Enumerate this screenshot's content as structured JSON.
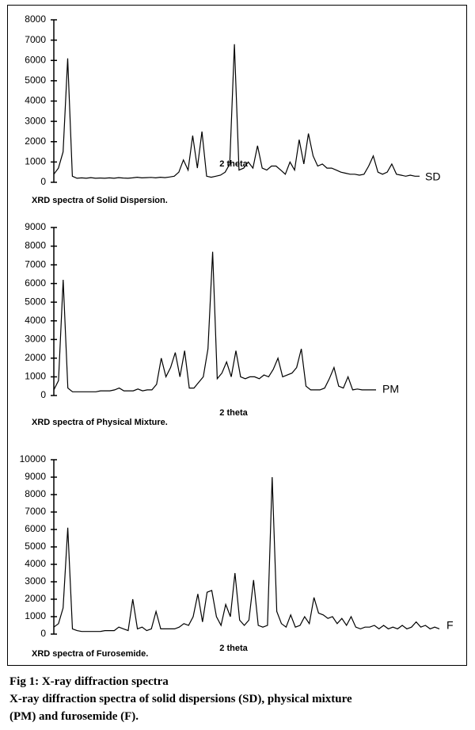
{
  "chart_data": [
    {
      "type": "line",
      "color": "#000000",
      "label": "SD",
      "xlabel": "2 theta",
      "caption": "XRD spectra of Solid Dispersion.",
      "ylim": [
        0,
        8000
      ],
      "yticks": [
        0,
        1000,
        2000,
        3000,
        4000,
        5000,
        6000,
        7000,
        8000
      ],
      "values": [
        400,
        700,
        1500,
        6100,
        300,
        200,
        220,
        200,
        230,
        200,
        210,
        200,
        220,
        200,
        230,
        210,
        200,
        220,
        250,
        220,
        230,
        240,
        220,
        250,
        230,
        260,
        300,
        500,
        1100,
        600,
        2300,
        700,
        2500,
        300,
        250,
        300,
        350,
        500,
        900,
        6800,
        600,
        700,
        1000,
        700,
        1800,
        700,
        600,
        800,
        800,
        600,
        400,
        1000,
        600,
        2100,
        900,
        2400,
        1300,
        800,
        900,
        700,
        700,
        600,
        500,
        450,
        400,
        400,
        350,
        400,
        800,
        1300,
        500,
        400,
        500,
        900,
        400,
        350,
        300,
        350,
        300,
        300
      ]
    },
    {
      "type": "line",
      "color": "#000000",
      "label": "PM",
      "xlabel": "2 theta",
      "caption": "XRD spectra of Physical Mixture.",
      "ylim": [
        0,
        9000
      ],
      "yticks": [
        0,
        1000,
        2000,
        3000,
        4000,
        5000,
        6000,
        7000,
        8000,
        9000
      ],
      "values": [
        300,
        800,
        6200,
        400,
        200,
        200,
        200,
        200,
        200,
        200,
        250,
        250,
        250,
        300,
        400,
        250,
        250,
        250,
        350,
        250,
        300,
        300,
        600,
        2000,
        1000,
        1500,
        2300,
        1000,
        2400,
        400,
        400,
        700,
        1000,
        2500,
        7700,
        900,
        1200,
        1800,
        1000,
        2400,
        1000,
        900,
        1000,
        1000,
        900,
        1100,
        1000,
        1400,
        2000,
        1000,
        1100,
        1200,
        1500,
        2500,
        500,
        300,
        300,
        300,
        400,
        900,
        1500,
        500,
        400,
        1000,
        300,
        350,
        300,
        300,
        300,
        300
      ]
    },
    {
      "type": "line",
      "color": "#000000",
      "label": "F",
      "xlabel": "2 theta",
      "caption": "XRD spectra of Furosemide.",
      "ylim": [
        0,
        10000
      ],
      "yticks": [
        0,
        1000,
        2000,
        3000,
        4000,
        5000,
        6000,
        7000,
        8000,
        9000,
        10000
      ],
      "values": [
        400,
        600,
        1500,
        6100,
        300,
        200,
        150,
        150,
        150,
        150,
        150,
        200,
        200,
        200,
        400,
        300,
        200,
        2000,
        300,
        400,
        200,
        300,
        1300,
        300,
        300,
        300,
        300,
        400,
        600,
        500,
        1000,
        2300,
        700,
        2400,
        2500,
        1000,
        500,
        1700,
        1000,
        3500,
        800,
        500,
        800,
        3100,
        500,
        400,
        500,
        9000,
        1300,
        600,
        400,
        1100,
        400,
        500,
        1000,
        600,
        2100,
        1200,
        1100,
        900,
        1000,
        600,
        900,
        500,
        1000,
        400,
        300,
        400,
        400,
        500,
        300,
        500,
        300,
        400,
        300,
        500,
        300,
        400,
        700,
        400,
        500,
        300,
        400,
        300
      ]
    }
  ],
  "figure": {
    "title": "Fig 1: X-ray diffraction spectra",
    "caption_lines": [
      "X-ray diffraction spectra of solid dispersions (SD), physical mixture",
      "(PM) and furosemide (F)."
    ]
  }
}
